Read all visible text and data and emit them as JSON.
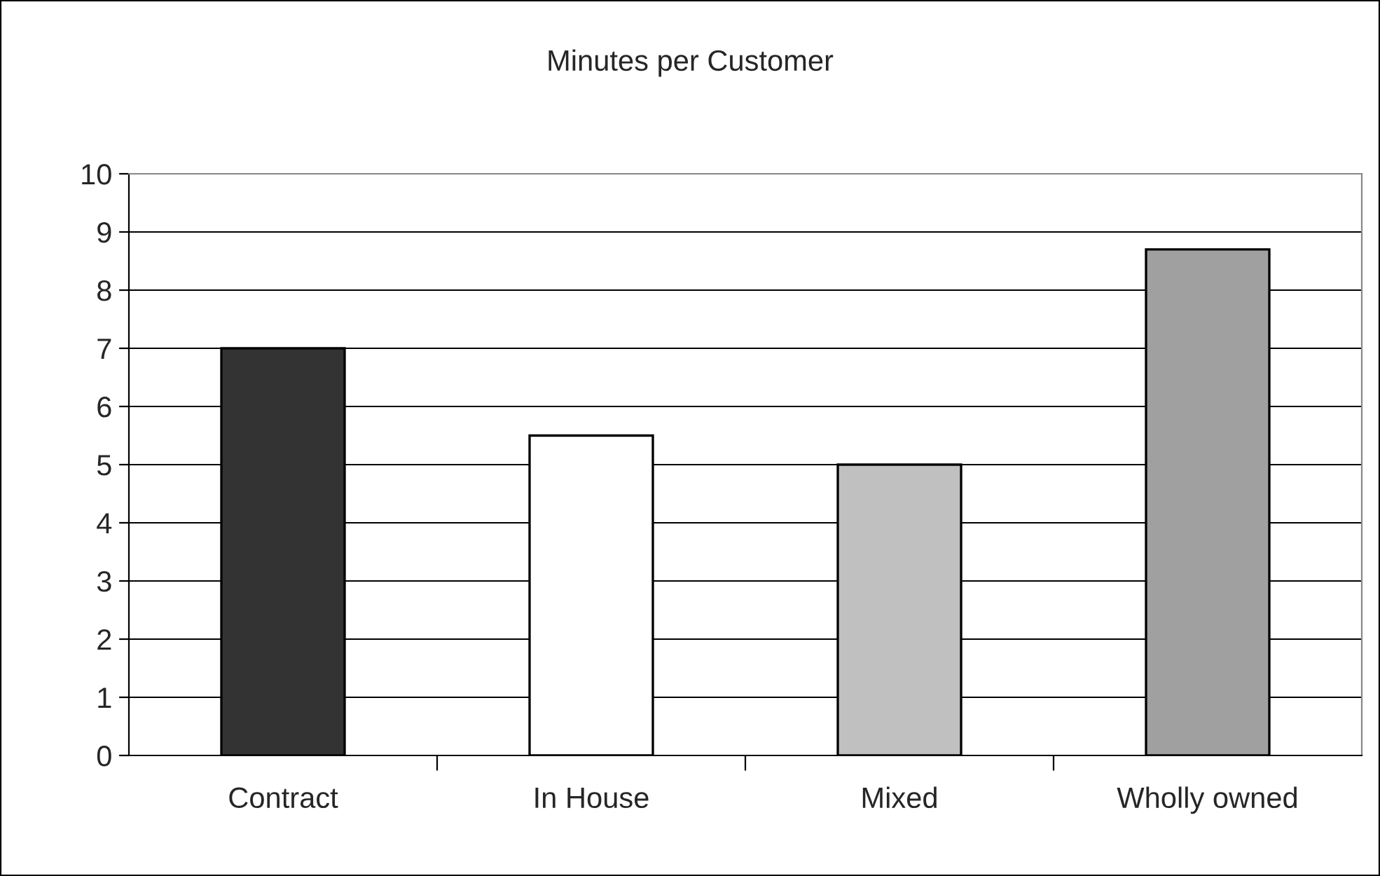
{
  "chart_data": {
    "type": "bar",
    "title": "Minutes per Customer",
    "categories": [
      "Contract",
      "In House",
      "Mixed",
      "Wholly owned"
    ],
    "values": [
      7.0,
      5.5,
      5.0,
      8.7
    ],
    "colors": [
      "#333333",
      "#ffffff",
      "#c0c0c0",
      "#a0a0a0"
    ],
    "ylim": [
      0,
      10
    ],
    "yticks": [
      0,
      1,
      2,
      3,
      4,
      5,
      6,
      7,
      8,
      9,
      10
    ],
    "grid": "y",
    "legend": false
  }
}
